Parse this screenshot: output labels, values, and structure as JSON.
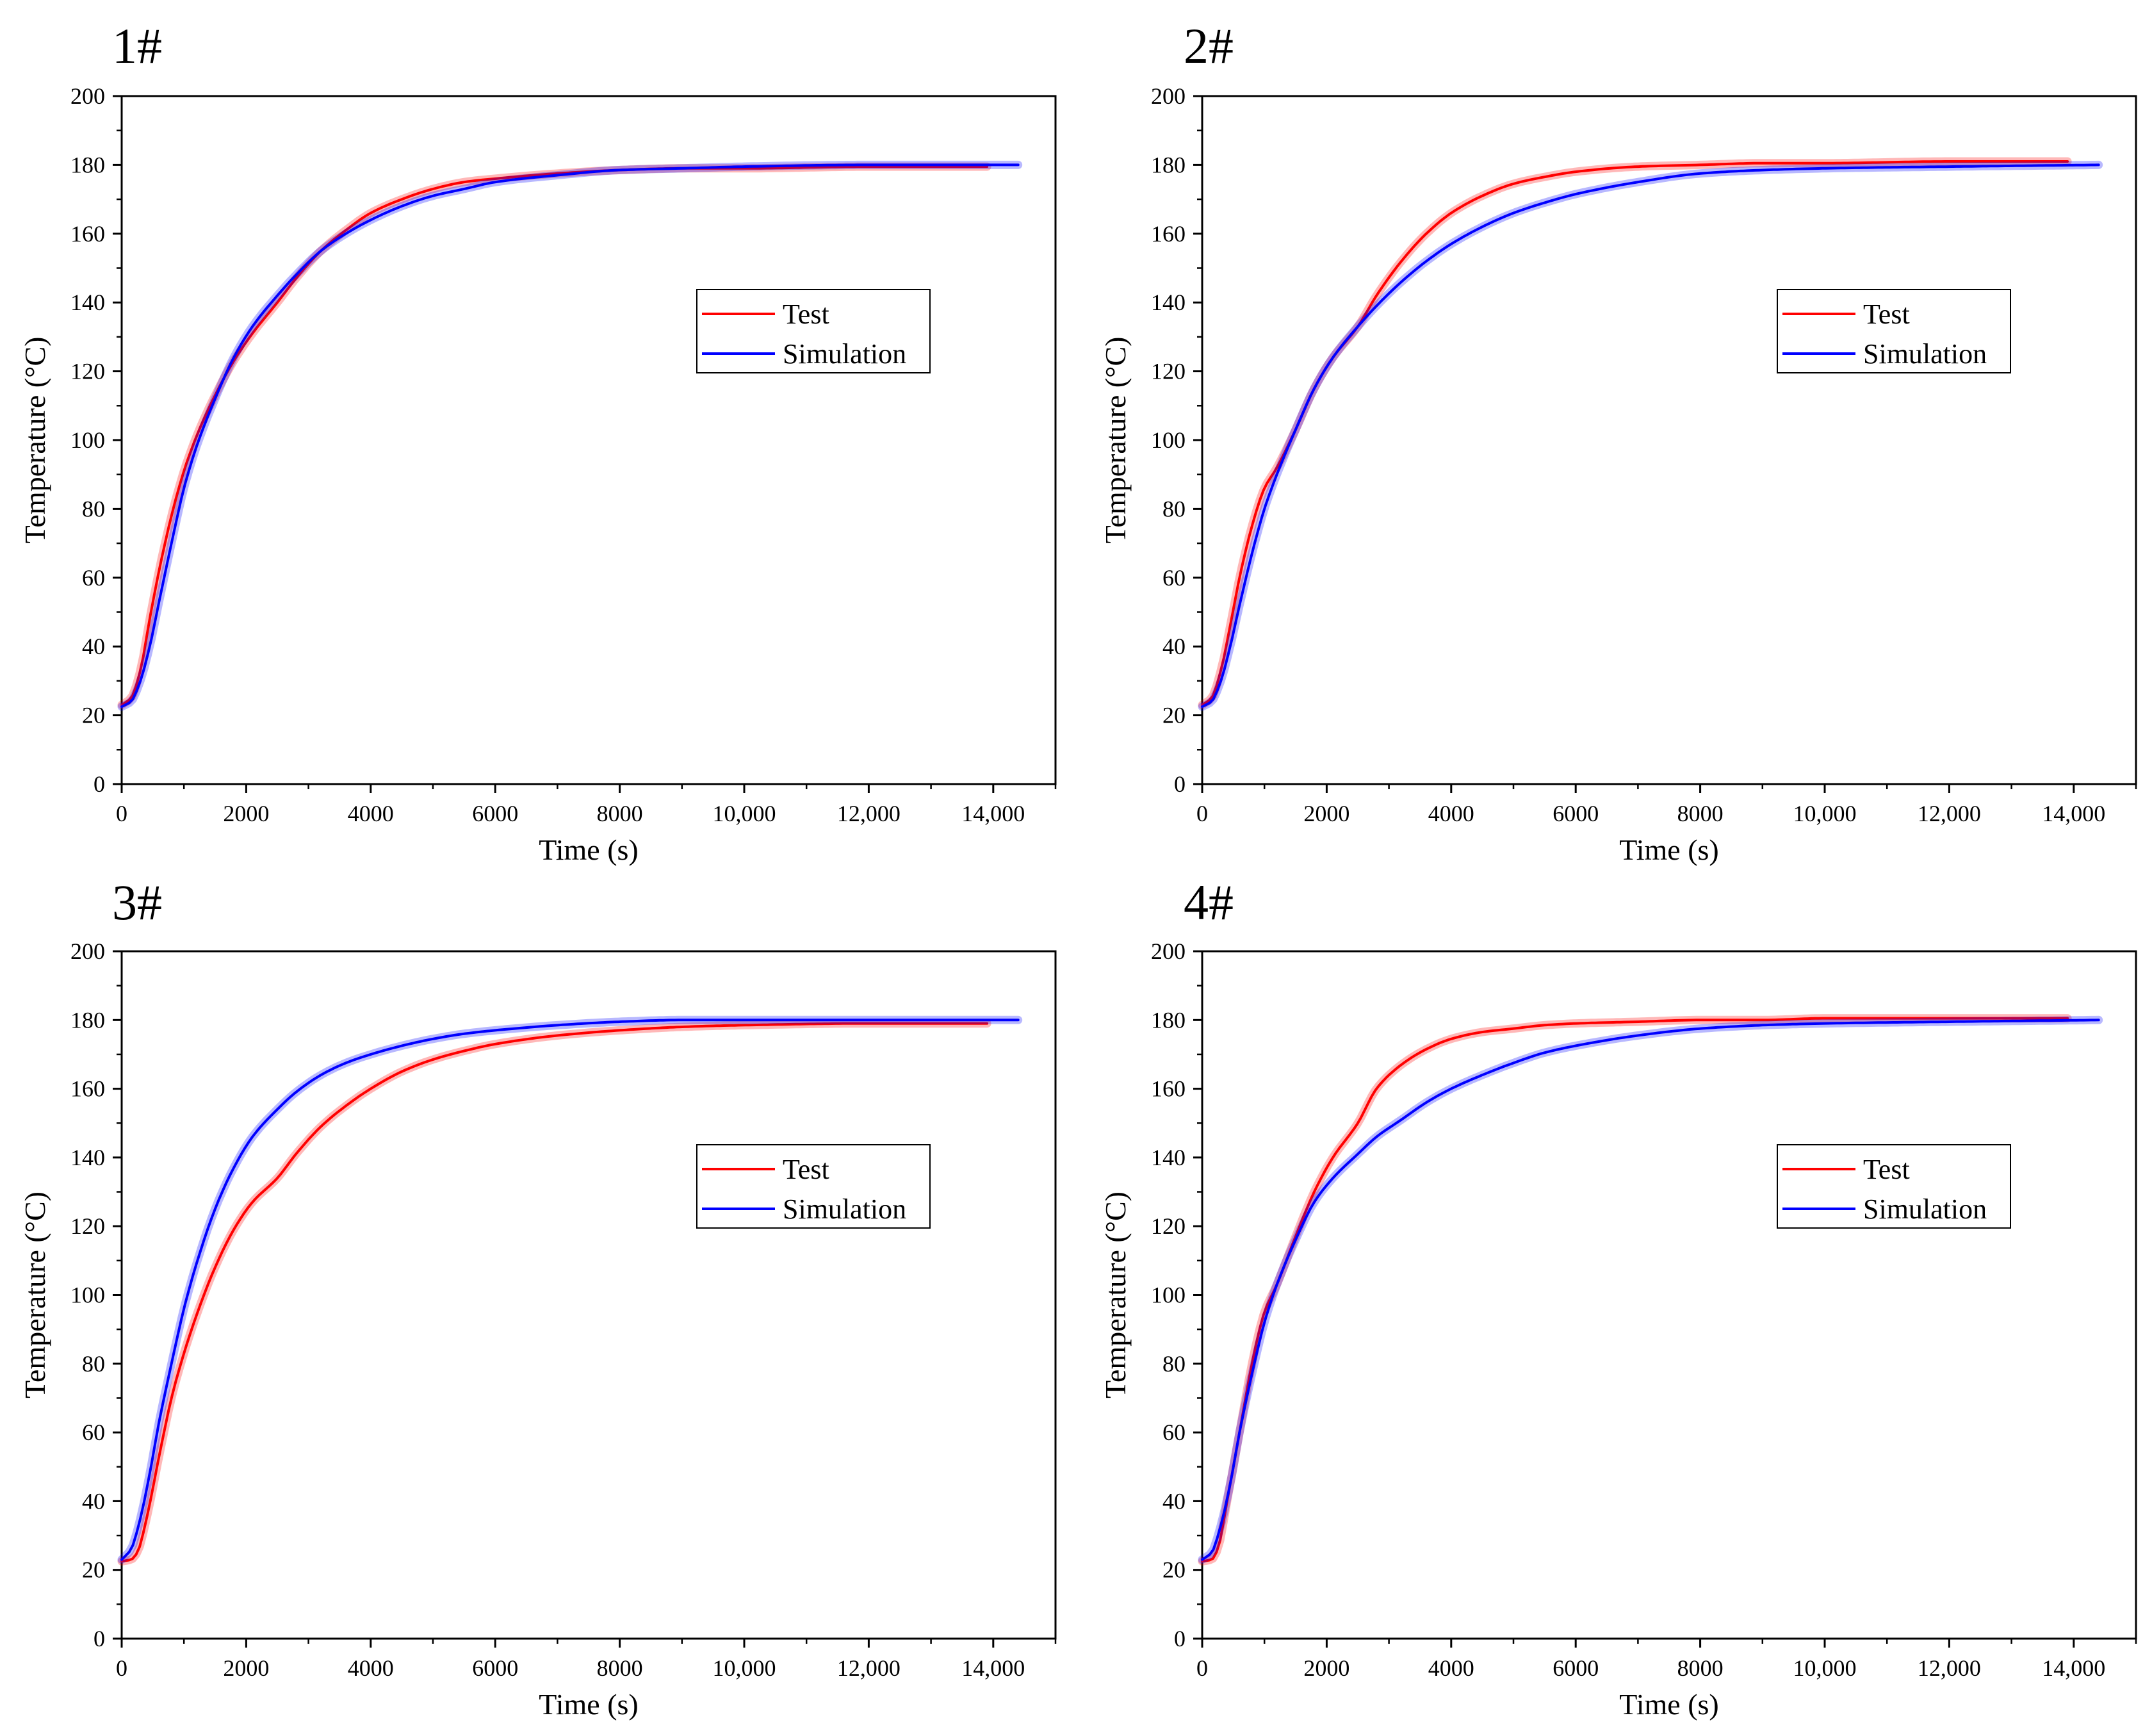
{
  "figure": {
    "colors": {
      "test": "#ff0000",
      "simulation": "#0000ff"
    }
  },
  "chart_data": [
    {
      "type": "line",
      "panel_label": "1#",
      "title": "",
      "xlabel": "Time (s)",
      "ylabel": "Temperature (°C)",
      "xlim": [
        0,
        15000
      ],
      "ylim": [
        0,
        200
      ],
      "x_ticks": [
        0,
        2000,
        4000,
        6000,
        8000,
        10000,
        12000,
        14000
      ],
      "x_tick_labels": [
        "0",
        "2000",
        "4000",
        "6000",
        "8000",
        "10,000",
        "12,000",
        "14,000"
      ],
      "y_ticks": [
        0,
        20,
        40,
        60,
        80,
        100,
        120,
        140,
        160,
        180,
        200
      ],
      "y_tick_labels": [
        "0",
        "20",
        "40",
        "60",
        "80",
        "100",
        "120",
        "140",
        "160",
        "180",
        "200"
      ],
      "legend": {
        "position": "center-right",
        "entries": [
          "Test",
          "Simulation"
        ]
      },
      "series": [
        {
          "name": "Test",
          "color": "#ff0000",
          "x": [
            0,
            150,
            300,
            450,
            600,
            800,
            1000,
            1200,
            1500,
            1800,
            2100,
            2500,
            2800,
            3200,
            3600,
            4000,
            4500,
            5000,
            5500,
            6000,
            7000,
            8000,
            9000,
            10000,
            12000,
            13900
          ],
          "y": [
            23,
            25,
            33,
            48,
            62,
            78,
            91,
            101,
            113,
            123,
            131,
            140,
            147,
            155,
            161,
            166,
            170,
            173,
            175,
            176,
            177.5,
            178.5,
            179,
            179,
            179.5,
            179.5
          ]
        },
        {
          "name": "Simulation",
          "color": "#0000ff",
          "x": [
            0,
            150,
            300,
            450,
            600,
            800,
            1000,
            1200,
            1500,
            1800,
            2100,
            2500,
            2800,
            3200,
            3600,
            4000,
            4500,
            5000,
            5500,
            6000,
            7000,
            8000,
            9000,
            10000,
            12000,
            14400
          ],
          "y": [
            22.5,
            24,
            30,
            40,
            53,
            70,
            86,
            98,
            112,
            124,
            133,
            142,
            148,
            155,
            160,
            164,
            168,
            171,
            173,
            175,
            177,
            178.5,
            179,
            179.5,
            180,
            180
          ]
        }
      ]
    },
    {
      "type": "line",
      "panel_label": "2#",
      "title": "",
      "xlabel": "Time (s)",
      "ylabel": "Temperature (°C)",
      "xlim": [
        0,
        15000
      ],
      "ylim": [
        0,
        200
      ],
      "x_ticks": [
        0,
        2000,
        4000,
        6000,
        8000,
        10000,
        12000,
        14000
      ],
      "x_tick_labels": [
        "0",
        "2000",
        "4000",
        "6000",
        "8000",
        "10,000",
        "12,000",
        "14,000"
      ],
      "y_ticks": [
        0,
        20,
        40,
        60,
        80,
        100,
        120,
        140,
        160,
        180,
        200
      ],
      "y_tick_labels": [
        "0",
        "20",
        "40",
        "60",
        "80",
        "100",
        "120",
        "140",
        "160",
        "180",
        "200"
      ],
      "legend": {
        "position": "center-right",
        "entries": [
          "Test",
          "Simulation"
        ]
      },
      "series": [
        {
          "name": "Test",
          "color": "#ff0000",
          "x": [
            0,
            150,
            300,
            450,
            600,
            800,
            1000,
            1200,
            1500,
            1800,
            2100,
            2500,
            2800,
            3200,
            3600,
            4000,
            4500,
            5000,
            5500,
            6000,
            7000,
            8000,
            9000,
            10000,
            12000,
            13900
          ],
          "y": [
            23,
            25,
            33,
            46,
            60,
            75,
            86,
            92,
            103,
            115,
            124,
            133,
            142,
            152,
            160,
            166,
            171,
            174.5,
            176.5,
            178,
            179.5,
            180,
            180.5,
            180.5,
            181,
            181
          ]
        },
        {
          "name": "Simulation",
          "color": "#0000ff",
          "x": [
            0,
            150,
            300,
            450,
            600,
            800,
            1000,
            1200,
            1500,
            1800,
            2100,
            2500,
            2800,
            3200,
            3600,
            4000,
            4500,
            5000,
            5500,
            6000,
            7000,
            8000,
            9000,
            10000,
            12000,
            14400
          ],
          "y": [
            22.5,
            24,
            30,
            40,
            52,
            67,
            80,
            90,
            103,
            115,
            124,
            133,
            139,
            146,
            152,
            157,
            162,
            166,
            169,
            171.5,
            175,
            177.5,
            178.5,
            179,
            179.5,
            180
          ]
        }
      ]
    },
    {
      "type": "line",
      "panel_label": "3#",
      "title": "",
      "xlabel": "Time (s)",
      "ylabel": "Temperature (°C)",
      "xlim": [
        0,
        15000
      ],
      "ylim": [
        0,
        200
      ],
      "x_ticks": [
        0,
        2000,
        4000,
        6000,
        8000,
        10000,
        12000,
        14000
      ],
      "x_tick_labels": [
        "0",
        "2000",
        "4000",
        "6000",
        "8000",
        "10,000",
        "12,000",
        "14,000"
      ],
      "y_ticks": [
        0,
        20,
        40,
        60,
        80,
        100,
        120,
        140,
        160,
        180,
        200
      ],
      "y_tick_labels": [
        "0",
        "20",
        "40",
        "60",
        "80",
        "100",
        "120",
        "140",
        "160",
        "180",
        "200"
      ],
      "legend": {
        "position": "center-right",
        "entries": [
          "Test",
          "Simulation"
        ]
      },
      "series": [
        {
          "name": "Test",
          "color": "#ff0000",
          "x": [
            0,
            150,
            250,
            400,
            600,
            800,
            1000,
            1200,
            1500,
            1800,
            2100,
            2500,
            2800,
            3200,
            3600,
            4000,
            4500,
            5000,
            5500,
            6000,
            7000,
            8000,
            9000,
            10000,
            12000,
            13900
          ],
          "y": [
            22.5,
            23,
            25,
            35,
            53,
            70,
            83,
            94,
            108,
            119,
            127,
            134,
            141,
            149,
            155,
            160,
            165,
            168.5,
            171,
            173,
            175.5,
            177,
            178,
            178.5,
            179,
            179
          ]
        },
        {
          "name": "Simulation",
          "color": "#0000ff",
          "x": [
            0,
            150,
            300,
            450,
            600,
            800,
            1000,
            1200,
            1500,
            1800,
            2100,
            2500,
            2800,
            3200,
            3600,
            4000,
            4500,
            5000,
            5500,
            6000,
            7000,
            8000,
            9000,
            10000,
            12000,
            14400
          ],
          "y": [
            23,
            26,
            35,
            48,
            63,
            80,
            96,
            109,
            125,
            137,
            146,
            154,
            159,
            164,
            167.5,
            170,
            172.5,
            174.5,
            176,
            177,
            178.5,
            179.5,
            180,
            180,
            180,
            180
          ]
        }
      ]
    },
    {
      "type": "line",
      "panel_label": "4#",
      "title": "",
      "xlabel": "Time (s)",
      "ylabel": "Temperature (°C)",
      "xlim": [
        0,
        15000
      ],
      "ylim": [
        0,
        200
      ],
      "x_ticks": [
        0,
        2000,
        4000,
        6000,
        8000,
        10000,
        12000,
        14000
      ],
      "x_tick_labels": [
        "0",
        "2000",
        "4000",
        "6000",
        "8000",
        "10,000",
        "12,000",
        "14,000"
      ],
      "y_ticks": [
        0,
        20,
        40,
        60,
        80,
        100,
        120,
        140,
        160,
        180,
        200
      ],
      "y_tick_labels": [
        "0",
        "20",
        "40",
        "60",
        "80",
        "100",
        "120",
        "140",
        "160",
        "180",
        "200"
      ],
      "legend": {
        "position": "center-right",
        "entries": [
          "Test",
          "Simulation"
        ]
      },
      "series": [
        {
          "name": "Test",
          "color": "#ff0000",
          "x": [
            0,
            150,
            250,
            400,
            600,
            800,
            1000,
            1200,
            1500,
            1800,
            2100,
            2500,
            2800,
            3200,
            3600,
            4000,
            4500,
            5000,
            5500,
            6000,
            7000,
            8000,
            9000,
            10000,
            12000,
            13900
          ],
          "y": [
            22.5,
            23,
            26,
            40,
            60,
            80,
            95,
            103,
            117,
            130,
            140,
            150,
            160,
            167,
            171.5,
            174.5,
            176.5,
            177.5,
            178.5,
            179,
            179.5,
            180,
            180,
            180.5,
            180.5,
            180.5
          ]
        },
        {
          "name": "Simulation",
          "color": "#0000ff",
          "x": [
            0,
            150,
            300,
            450,
            600,
            800,
            1000,
            1200,
            1500,
            1800,
            2100,
            2500,
            2800,
            3200,
            3600,
            4000,
            4500,
            5000,
            5500,
            6000,
            7000,
            8000,
            9000,
            10000,
            12000,
            14400
          ],
          "y": [
            23,
            25,
            33,
            45,
            60,
            77,
            92,
            103,
            116,
            127,
            134,
            141,
            146,
            151,
            156,
            160,
            164,
            167.5,
            170.5,
            172.5,
            175.5,
            177.5,
            178.5,
            179,
            179.5,
            180
          ]
        }
      ]
    }
  ]
}
